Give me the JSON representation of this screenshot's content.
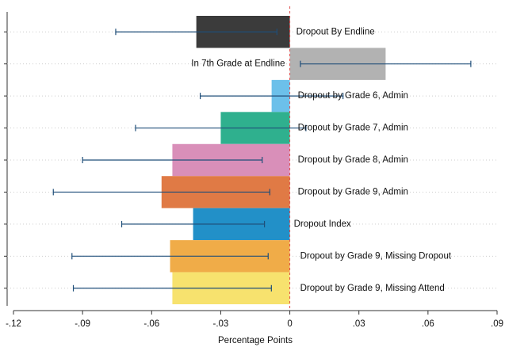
{
  "chart_data": {
    "type": "bar",
    "orientation": "horizontal",
    "xlabel": "Percentage Points",
    "categories": [
      "Dropout By Endline",
      "In 7th Grade at Endline",
      "Dropout by Grade 6, Admin",
      "Dropout by Grade 7, Admin",
      "Dropout by Grade 8, Admin",
      "Dropout by Grade 9, Admin",
      "Dropout Index",
      "Dropout by Grade 9, Missing Dropout",
      "Dropout by Grade 9, Missing Attend"
    ],
    "values": [
      -0.0406,
      0.0416,
      -0.0079,
      -0.03,
      -0.051,
      -0.0557,
      -0.042,
      -0.052,
      -0.051
    ],
    "errors": [
      0.035,
      0.037,
      0.031,
      0.037,
      0.039,
      0.047,
      0.031,
      0.0426,
      0.043
    ],
    "colors": [
      "#3b3b3b",
      "#b2b2b2",
      "#6cc0ea",
      "#2fb08e",
      "#d98fb9",
      "#e07a45",
      "#2290c8",
      "#f0ac48",
      "#f7e26e"
    ],
    "error_color": "#1f4e79",
    "xlim": [
      -0.12,
      0.09
    ],
    "xticks": [
      {
        "value": -0.12,
        "label": "-.12"
      },
      {
        "value": -0.09,
        "label": "-.09"
      },
      {
        "value": -0.06,
        "label": "-.06"
      },
      {
        "value": -0.03,
        "label": "-.03"
      },
      0,
      {
        "value": 0.03,
        "label": ".03"
      },
      {
        "value": 0.06,
        "label": ".06"
      },
      {
        "value": 0.09,
        "label": ".09"
      }
    ],
    "grid": true
  }
}
